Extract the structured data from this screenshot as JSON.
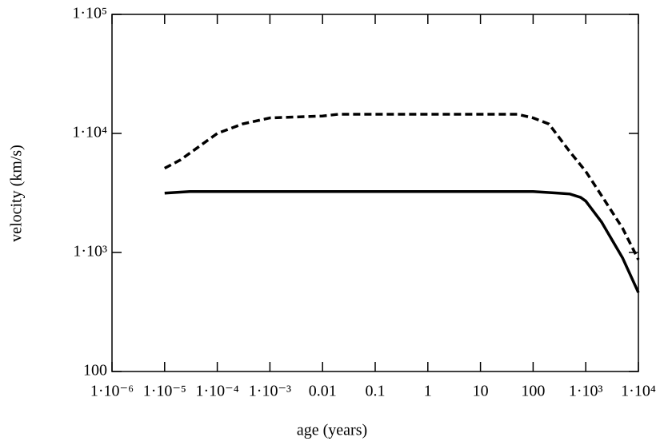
{
  "chart_data": {
    "type": "line",
    "x_label": "age (years)",
    "y_label": "velocity (km/s)",
    "log_x": true,
    "log_y": true,
    "xlim": [
      1e-06,
      10000
    ],
    "ylim": [
      100,
      100000
    ],
    "xticks": [
      {
        "value": 1e-06,
        "label": "1·10⁻⁶"
      },
      {
        "value": 1e-05,
        "label": "1·10⁻⁵"
      },
      {
        "value": 0.0001,
        "label": "1·10⁻⁴"
      },
      {
        "value": 0.001,
        "label": "1·10⁻³"
      },
      0.01,
      0.1,
      1,
      10,
      100,
      {
        "value": 1000,
        "label": "1·10³"
      },
      {
        "value": 10000,
        "label": "1·10⁴"
      }
    ],
    "yticks": [
      100,
      {
        "value": 1000,
        "label": "1·10³"
      },
      {
        "value": 10000,
        "label": "1·10⁴"
      },
      {
        "value": 100000,
        "label": "1·10⁵"
      }
    ],
    "series": [
      {
        "color": "#000000",
        "dash": false,
        "x": [
          1e-05,
          3e-05,
          0.001,
          0.1,
          10,
          100,
          300,
          500,
          800,
          1000,
          2000,
          5000,
          10000
        ],
        "values": [
          3150,
          3250,
          3250,
          3250,
          3250,
          3250,
          3150,
          3100,
          2900,
          2700,
          1800,
          900,
          460
        ]
      },
      {
        "color": "#000000",
        "dash": true,
        "x": [
          1e-05,
          2e-05,
          0.0001,
          0.0003,
          0.001,
          0.01,
          0.02,
          10,
          50,
          100,
          200,
          500,
          1000,
          2000,
          5000,
          10000
        ],
        "values": [
          5100,
          6000,
          10000,
          12000,
          13500,
          14000,
          14500,
          14500,
          14500,
          13500,
          12000,
          7000,
          4800,
          3000,
          1600,
          870
        ]
      }
    ]
  }
}
